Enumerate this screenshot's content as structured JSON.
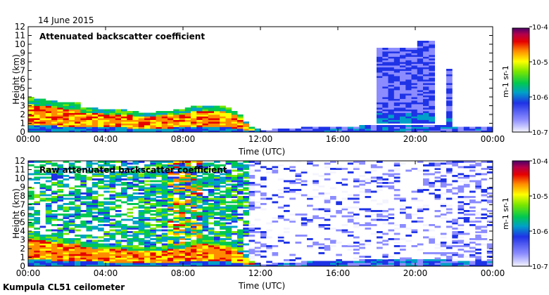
{
  "figure": {
    "date": "14 June 2015",
    "footer": "Kumpula CL51 ceilometer"
  },
  "chart_data": [
    {
      "type": "heatmap",
      "title": "Attenuated backscatter coefficient",
      "xlabel": "Time (UTC)",
      "ylabel": "Height (km)",
      "x_ticks": [
        "00:00",
        "04:00",
        "08:00",
        "12:00",
        "16:00",
        "20:00",
        "00:00"
      ],
      "x_tick_hours": [
        0,
        4,
        8,
        12,
        16,
        20,
        24
      ],
      "xlim": [
        0,
        24
      ],
      "y_ticks": [
        0,
        1,
        2,
        3,
        4,
        5,
        6,
        7,
        8,
        9,
        10,
        11,
        12
      ],
      "ylim": [
        0,
        12
      ],
      "colorbar": {
        "scale": "log",
        "range": [
          1e-07,
          0.0001
        ],
        "ticks": [
          "10-7",
          "10-6",
          "10-5",
          "10-4"
        ],
        "label": "m-1 sr-1"
      },
      "layer_top_km": [
        [
          0.0,
          4.1
        ],
        [
          0.5,
          3.8
        ],
        [
          1.0,
          3.7
        ],
        [
          1.5,
          3.5
        ],
        [
          2.0,
          3.3
        ],
        [
          2.5,
          3.4
        ],
        [
          2.8,
          2.9
        ],
        [
          3.0,
          2.8
        ],
        [
          4.0,
          2.6
        ],
        [
          5.0,
          2.5
        ],
        [
          6.0,
          2.2
        ],
        [
          7.0,
          2.4
        ],
        [
          8.0,
          2.6
        ],
        [
          8.5,
          3.0
        ],
        [
          9.0,
          3.1
        ],
        [
          10.0,
          3.0
        ],
        [
          10.5,
          2.8
        ],
        [
          11.0,
          1.8
        ],
        [
          11.5,
          0.6
        ],
        [
          12.0,
          0.2
        ],
        [
          13.0,
          0.4
        ],
        [
          14.0,
          0.5
        ],
        [
          16.0,
          0.6
        ],
        [
          18.0,
          0.8
        ],
        [
          20.0,
          0.9
        ],
        [
          22.0,
          0.7
        ],
        [
          24.0,
          0.5
        ]
      ],
      "upper_cloud": [
        {
          "start_h": 18.0,
          "end_h": 20.1,
          "base_km": 1.0,
          "top_km": 9.6
        },
        {
          "start_h": 20.1,
          "end_h": 20.9,
          "base_km": 1.0,
          "top_km": 10.3
        },
        {
          "start_h": 21.6,
          "end_h": 21.9,
          "base_km": 0.8,
          "top_km": 7.3
        }
      ]
    },
    {
      "type": "heatmap",
      "title": "Raw attenuated backscatter coefficient",
      "xlabel": "Time (UTC)",
      "ylabel": "Height (km)",
      "x_ticks": [
        "00:00",
        "04:00",
        "08:00",
        "12:00",
        "16:00",
        "20:00",
        "00:00"
      ],
      "x_tick_hours": [
        0,
        4,
        8,
        12,
        16,
        20,
        24
      ],
      "xlim": [
        0,
        24
      ],
      "y_ticks": [
        0,
        1,
        2,
        3,
        4,
        5,
        6,
        7,
        8,
        9,
        10,
        11,
        12
      ],
      "ylim": [
        0,
        12
      ],
      "colorbar": {
        "scale": "log",
        "range": [
          1e-07,
          0.0001
        ],
        "ticks": [
          "10-7",
          "10-6",
          "10-5",
          "10-4"
        ],
        "label": "m-1 sr-1"
      },
      "layer_top_km": [
        [
          0.0,
          4.0
        ],
        [
          0.5,
          3.7
        ],
        [
          1.0,
          3.6
        ],
        [
          1.5,
          3.4
        ],
        [
          2.0,
          3.2
        ],
        [
          2.5,
          3.4
        ],
        [
          2.8,
          2.8
        ],
        [
          3.0,
          2.7
        ],
        [
          4.0,
          2.5
        ],
        [
          5.0,
          2.4
        ],
        [
          6.0,
          2.1
        ],
        [
          7.0,
          2.3
        ],
        [
          8.0,
          2.6
        ],
        [
          8.5,
          3.0
        ],
        [
          9.0,
          3.2
        ],
        [
          10.0,
          3.0
        ],
        [
          10.5,
          2.8
        ],
        [
          11.0,
          1.8
        ],
        [
          11.5,
          0.6
        ],
        [
          12.0,
          0.2
        ],
        [
          13.0,
          0.4
        ],
        [
          14.0,
          0.5
        ],
        [
          16.0,
          0.6
        ],
        [
          18.0,
          0.8
        ],
        [
          20.0,
          0.9
        ],
        [
          22.0,
          0.7
        ],
        [
          24.0,
          0.5
        ]
      ],
      "noise_level_by_hour": [
        [
          0,
          0.55
        ],
        [
          2,
          0.55
        ],
        [
          4,
          0.6
        ],
        [
          6,
          0.65
        ],
        [
          8,
          0.9
        ],
        [
          10,
          0.7
        ],
        [
          11,
          0.75
        ],
        [
          12,
          0.25
        ],
        [
          14,
          0.2
        ],
        [
          16,
          0.2
        ],
        [
          18,
          0.28
        ],
        [
          20,
          0.2
        ],
        [
          22,
          0.45
        ],
        [
          24,
          0.4
        ]
      ]
    }
  ]
}
